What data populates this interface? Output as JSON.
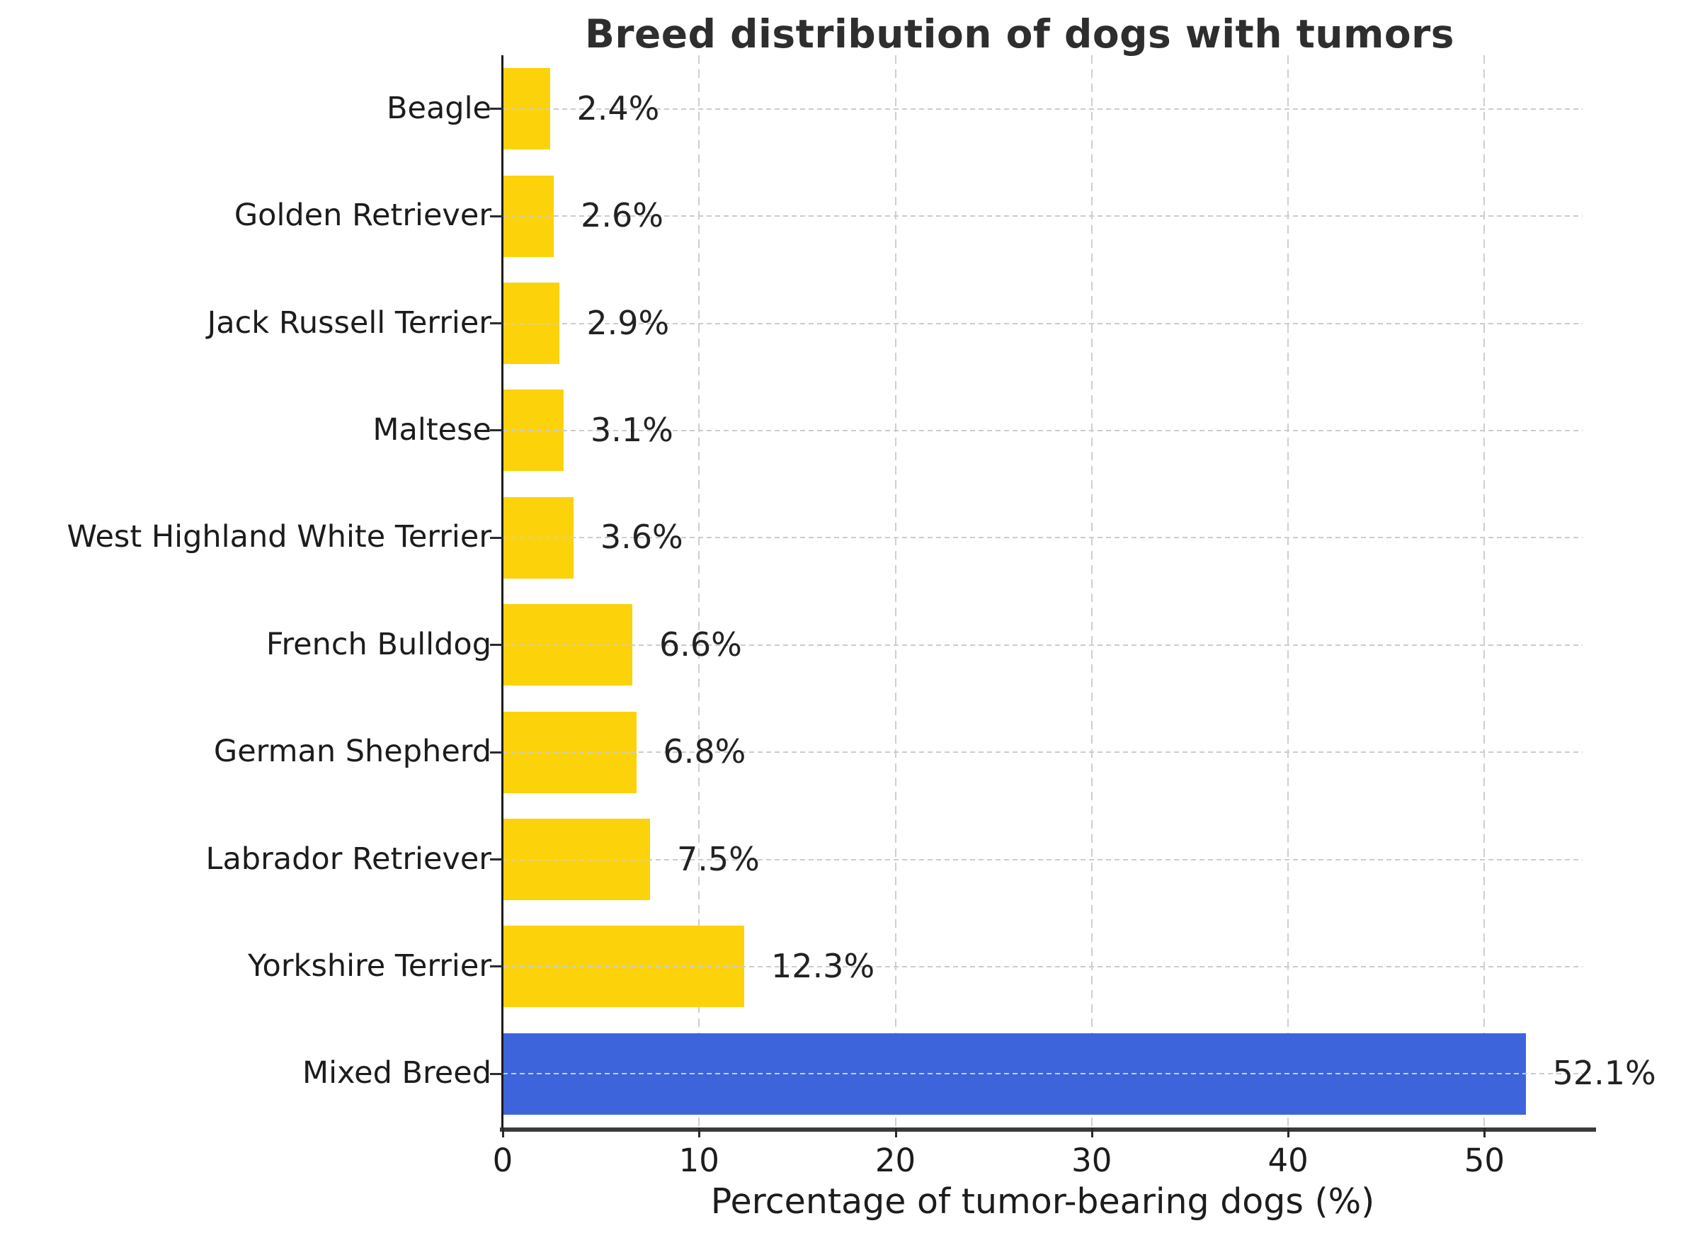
{
  "chart_data": {
    "type": "bar",
    "orientation": "horizontal",
    "title": "Breed distribution of dogs with tumors",
    "xlabel": "Percentage of tumor-bearing dogs (%)",
    "ylabel": "",
    "xlim": [
      0,
      55
    ],
    "grid": true,
    "grid_style": "dashed",
    "legend": "none",
    "categories": [
      "Beagle",
      "Golden Retriever",
      "Jack Russell Terrier",
      "Maltese",
      "West Highland White Terrier",
      "French Bulldog",
      "German Shepherd",
      "Labrador Retriever",
      "Yorkshire Terrier",
      "Mixed Breed"
    ],
    "values": [
      2.4,
      2.6,
      2.9,
      3.1,
      3.6,
      6.6,
      6.8,
      7.5,
      12.3,
      52.1
    ],
    "value_labels": [
      "2.4%",
      "2.6%",
      "2.9%",
      "3.1%",
      "3.6%",
      "6.6%",
      "6.8%",
      "7.5%",
      "12.3%",
      "52.1%"
    ],
    "bar_colors": [
      "#FCD20B",
      "#FCD20B",
      "#FCD20B",
      "#FCD20B",
      "#FCD20B",
      "#FCD20B",
      "#FCD20B",
      "#FCD20B",
      "#FCD20B",
      "#3E64DC"
    ],
    "x_tick_values": [
      0,
      10,
      20,
      30,
      40,
      50
    ],
    "x_tick_labels": [
      "0",
      "10",
      "20",
      "30",
      "40",
      "50"
    ]
  },
  "colors": {
    "bar_default": "#FCD20B",
    "bar_highlight": "#3E64DC",
    "grid": "#cccccc",
    "axis_spine": "#2b2b2b",
    "title_text": "#2e2e2e",
    "label_text": "#1c1c1c"
  }
}
